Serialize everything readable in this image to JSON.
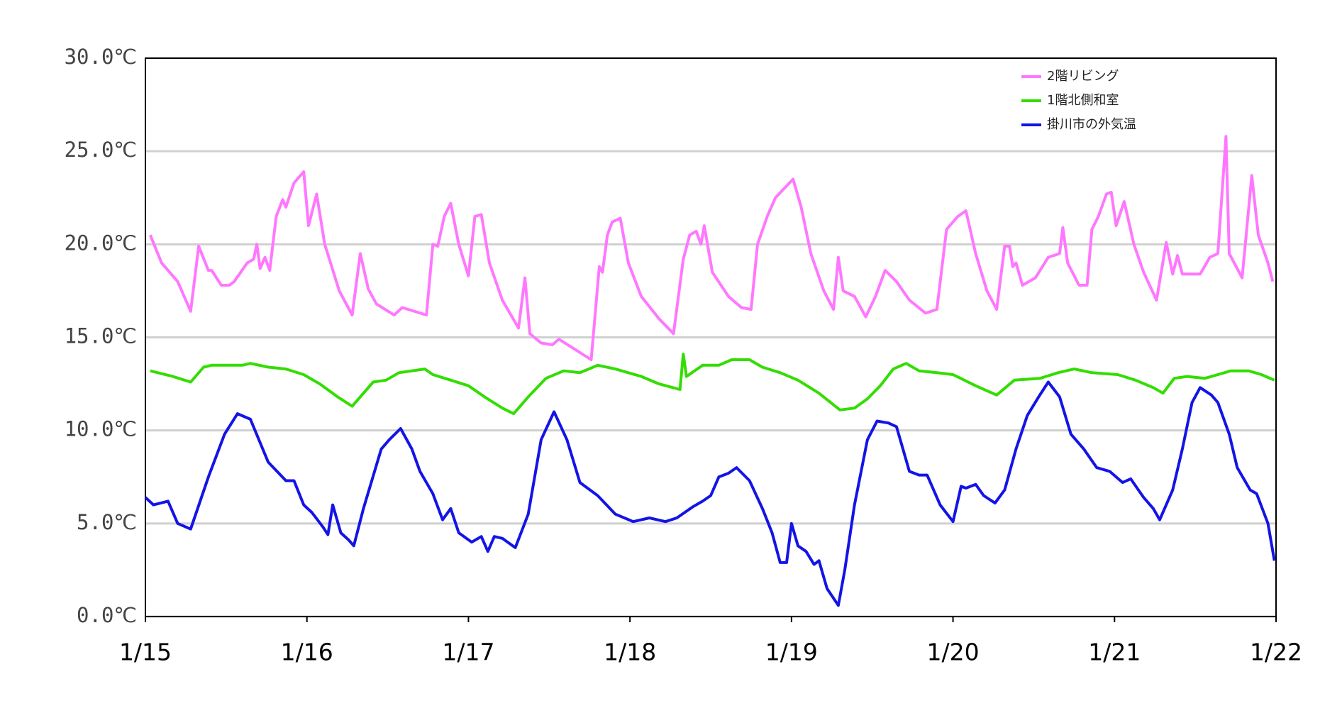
{
  "chart_data": {
    "type": "line",
    "xlim": [
      0,
      7
    ],
    "xticks": [
      {
        "value": 0,
        "label": "1/15"
      },
      {
        "value": 1,
        "label": "1/16"
      },
      {
        "value": 2,
        "label": "1/17"
      },
      {
        "value": 3,
        "label": "1/18"
      },
      {
        "value": 4,
        "label": "1/19"
      },
      {
        "value": 5,
        "label": "1/20"
      },
      {
        "value": 6,
        "label": "1/21"
      },
      {
        "value": 7,
        "label": "1/22"
      }
    ],
    "ylim": [
      0,
      30
    ],
    "yticks": [
      {
        "value": 0,
        "label": "0.0℃"
      },
      {
        "value": 5,
        "label": "5.0℃"
      },
      {
        "value": 10,
        "label": "10.0℃"
      },
      {
        "value": 15,
        "label": "15.0℃"
      },
      {
        "value": 20,
        "label": "20.0℃"
      },
      {
        "value": 25,
        "label": "25.0℃"
      },
      {
        "value": 30,
        "label": "30.0℃"
      }
    ],
    "grid": true,
    "legend": "top-right",
    "series": [
      {
        "name": "2階リビング",
        "color": "#ff77ff",
        "x": [
          0.03,
          0.1,
          0.2,
          0.28,
          0.33,
          0.39,
          0.41,
          0.47,
          0.52,
          0.55,
          0.63,
          0.67,
          0.69,
          0.71,
          0.74,
          0.77,
          0.81,
          0.85,
          0.87,
          0.92,
          0.98,
          1.01,
          1.06,
          1.11,
          1.2,
          1.28,
          1.33,
          1.38,
          1.43,
          1.54,
          1.59,
          1.74,
          1.78,
          1.81,
          1.85,
          1.89,
          1.94,
          2.0,
          2.04,
          2.08,
          2.13,
          2.21,
          2.31,
          2.35,
          2.38,
          2.45,
          2.52,
          2.56,
          2.67,
          2.76,
          2.81,
          2.83,
          2.86,
          2.89,
          2.94,
          2.99,
          3.07,
          3.18,
          3.27,
          3.33,
          3.37,
          3.41,
          3.44,
          3.46,
          3.51,
          3.61,
          3.69,
          3.75,
          3.79,
          3.85,
          3.9,
          4.01,
          4.06,
          4.12,
          4.2,
          4.26,
          4.29,
          4.32,
          4.39,
          4.46,
          4.52,
          4.58,
          4.65,
          4.73,
          4.83,
          4.9,
          4.96,
          5.03,
          5.08,
          5.14,
          5.21,
          5.27,
          5.32,
          5.35,
          5.37,
          5.39,
          5.43,
          5.51,
          5.59,
          5.66,
          5.68,
          5.71,
          5.78,
          5.83,
          5.86,
          5.9,
          5.95,
          5.98,
          6.01,
          6.06,
          6.12,
          6.18,
          6.26,
          6.32,
          6.36,
          6.39,
          6.42,
          6.53,
          6.59,
          6.64,
          6.69,
          6.71,
          6.79,
          6.85,
          6.89,
          6.95,
          6.98
        ],
        "values": [
          20.5,
          19.0,
          18.0,
          16.4,
          19.9,
          18.6,
          18.6,
          17.8,
          17.8,
          18.0,
          19.0,
          19.2,
          20.0,
          18.7,
          19.3,
          18.6,
          21.5,
          22.4,
          22.0,
          23.3,
          23.9,
          21.0,
          22.7,
          20.0,
          17.5,
          16.2,
          19.5,
          17.6,
          16.8,
          16.2,
          16.6,
          16.2,
          20.0,
          19.9,
          21.5,
          22.2,
          20.0,
          18.3,
          21.5,
          21.6,
          19.0,
          17.0,
          15.5,
          18.2,
          15.2,
          14.7,
          14.6,
          14.9,
          14.3,
          13.8,
          18.8,
          18.5,
          20.5,
          21.2,
          21.4,
          19.0,
          17.2,
          16.0,
          15.2,
          19.2,
          20.5,
          20.7,
          20.0,
          21.0,
          18.5,
          17.2,
          16.6,
          16.5,
          20.0,
          21.5,
          22.5,
          23.5,
          22.0,
          19.5,
          17.5,
          16.5,
          19.3,
          17.5,
          17.2,
          16.1,
          17.2,
          18.6,
          18.0,
          17.0,
          16.3,
          16.5,
          20.8,
          21.5,
          21.8,
          19.5,
          17.5,
          16.5,
          19.9,
          19.9,
          18.8,
          19.0,
          17.8,
          18.2,
          19.3,
          19.5,
          20.9,
          19.0,
          17.8,
          17.8,
          20.8,
          21.5,
          22.7,
          22.8,
          21.0,
          22.3,
          20.0,
          18.5,
          17.0,
          20.1,
          18.4,
          19.4,
          18.4,
          18.4,
          19.3,
          19.5,
          25.8,
          19.5,
          18.2,
          23.7,
          20.5,
          19.0,
          18.0
        ]
      },
      {
        "name": "1階北側和室",
        "color": "#33dd00",
        "x": [
          0.03,
          0.17,
          0.28,
          0.36,
          0.41,
          0.6,
          0.65,
          0.76,
          0.87,
          0.98,
          1.08,
          1.19,
          1.28,
          1.33,
          1.41,
          1.49,
          1.57,
          1.73,
          1.78,
          1.89,
          2.0,
          2.1,
          2.21,
          2.28,
          2.37,
          2.48,
          2.59,
          2.69,
          2.8,
          2.91,
          3.07,
          3.18,
          3.31,
          3.33,
          3.35,
          3.45,
          3.55,
          3.63,
          3.74,
          3.82,
          3.93,
          4.04,
          4.17,
          4.3,
          4.39,
          4.47,
          4.55,
          4.63,
          4.71,
          4.79,
          4.9,
          5.0,
          5.14,
          5.27,
          5.38,
          5.54,
          5.65,
          5.75,
          5.86,
          6.02,
          6.13,
          6.24,
          6.3,
          6.37,
          6.45,
          6.56,
          6.64,
          6.72,
          6.83,
          6.91,
          6.99
        ],
        "values": [
          13.2,
          12.9,
          12.6,
          13.4,
          13.5,
          13.5,
          13.6,
          13.4,
          13.3,
          13.0,
          12.5,
          11.8,
          11.3,
          11.8,
          12.6,
          12.7,
          13.1,
          13.3,
          13.0,
          12.7,
          12.4,
          11.8,
          11.2,
          10.9,
          11.8,
          12.8,
          13.2,
          13.1,
          13.5,
          13.3,
          12.9,
          12.5,
          12.2,
          14.1,
          12.9,
          13.5,
          13.5,
          13.8,
          13.8,
          13.4,
          13.1,
          12.7,
          12.0,
          11.1,
          11.2,
          11.7,
          12.4,
          13.3,
          13.6,
          13.2,
          13.1,
          13.0,
          12.4,
          11.9,
          12.7,
          12.8,
          13.1,
          13.3,
          13.1,
          13.0,
          12.7,
          12.3,
          12.0,
          12.8,
          12.9,
          12.8,
          13.0,
          13.2,
          13.2,
          13.0,
          12.7
        ]
      },
      {
        "name": "掛川市の外気温",
        "color": "#1414e6",
        "x": [
          0.0,
          0.05,
          0.14,
          0.2,
          0.28,
          0.39,
          0.49,
          0.57,
          0.65,
          0.76,
          0.87,
          0.92,
          0.98,
          1.03,
          1.1,
          1.13,
          1.16,
          1.21,
          1.26,
          1.29,
          1.35,
          1.46,
          1.51,
          1.58,
          1.65,
          1.7,
          1.78,
          1.84,
          1.89,
          1.94,
          2.02,
          2.08,
          2.12,
          2.16,
          2.21,
          2.29,
          2.37,
          2.45,
          2.53,
          2.61,
          2.69,
          2.8,
          2.91,
          3.02,
          3.12,
          3.22,
          3.29,
          3.34,
          3.39,
          3.45,
          3.5,
          3.55,
          3.61,
          3.66,
          3.74,
          3.82,
          3.88,
          3.93,
          3.97,
          4.0,
          4.04,
          4.09,
          4.14,
          4.17,
          4.22,
          4.29,
          4.33,
          4.39,
          4.47,
          4.53,
          4.6,
          4.65,
          4.73,
          4.79,
          4.84,
          4.92,
          5.0,
          5.05,
          5.08,
          5.14,
          5.19,
          5.26,
          5.32,
          5.39,
          5.46,
          5.53,
          5.59,
          5.66,
          5.73,
          5.81,
          5.89,
          5.97,
          6.05,
          6.1,
          6.18,
          6.24,
          6.28,
          6.36,
          6.42,
          6.48,
          6.53,
          6.6,
          6.64,
          6.71,
          6.76,
          6.84,
          6.88,
          6.95,
          6.99
        ],
        "values": [
          6.4,
          6.0,
          6.2,
          5.0,
          4.7,
          7.5,
          9.8,
          10.9,
          10.6,
          8.3,
          7.3,
          7.3,
          6.0,
          5.6,
          4.8,
          4.4,
          6.0,
          4.5,
          4.1,
          3.8,
          5.8,
          9.0,
          9.5,
          10.1,
          9.0,
          7.8,
          6.6,
          5.2,
          5.8,
          4.5,
          4.0,
          4.3,
          3.5,
          4.3,
          4.2,
          3.7,
          5.5,
          9.5,
          11.0,
          9.5,
          7.2,
          6.5,
          5.5,
          5.1,
          5.3,
          5.1,
          5.3,
          5.6,
          5.9,
          6.2,
          6.5,
          7.5,
          7.7,
          8.0,
          7.3,
          5.8,
          4.5,
          2.9,
          2.9,
          5.0,
          3.8,
          3.5,
          2.8,
          3.0,
          1.5,
          0.6,
          2.5,
          6.0,
          9.5,
          10.5,
          10.4,
          10.2,
          7.8,
          7.6,
          7.6,
          6.0,
          5.1,
          7.0,
          6.9,
          7.1,
          6.5,
          6.1,
          6.8,
          9.0,
          10.8,
          11.8,
          12.6,
          11.8,
          9.8,
          9.0,
          8.0,
          7.8,
          7.2,
          7.4,
          6.4,
          5.8,
          5.2,
          6.8,
          9.0,
          11.5,
          12.3,
          11.9,
          11.5,
          9.8,
          8.0,
          6.8,
          6.6,
          5.0,
          3.0
        ]
      }
    ]
  }
}
